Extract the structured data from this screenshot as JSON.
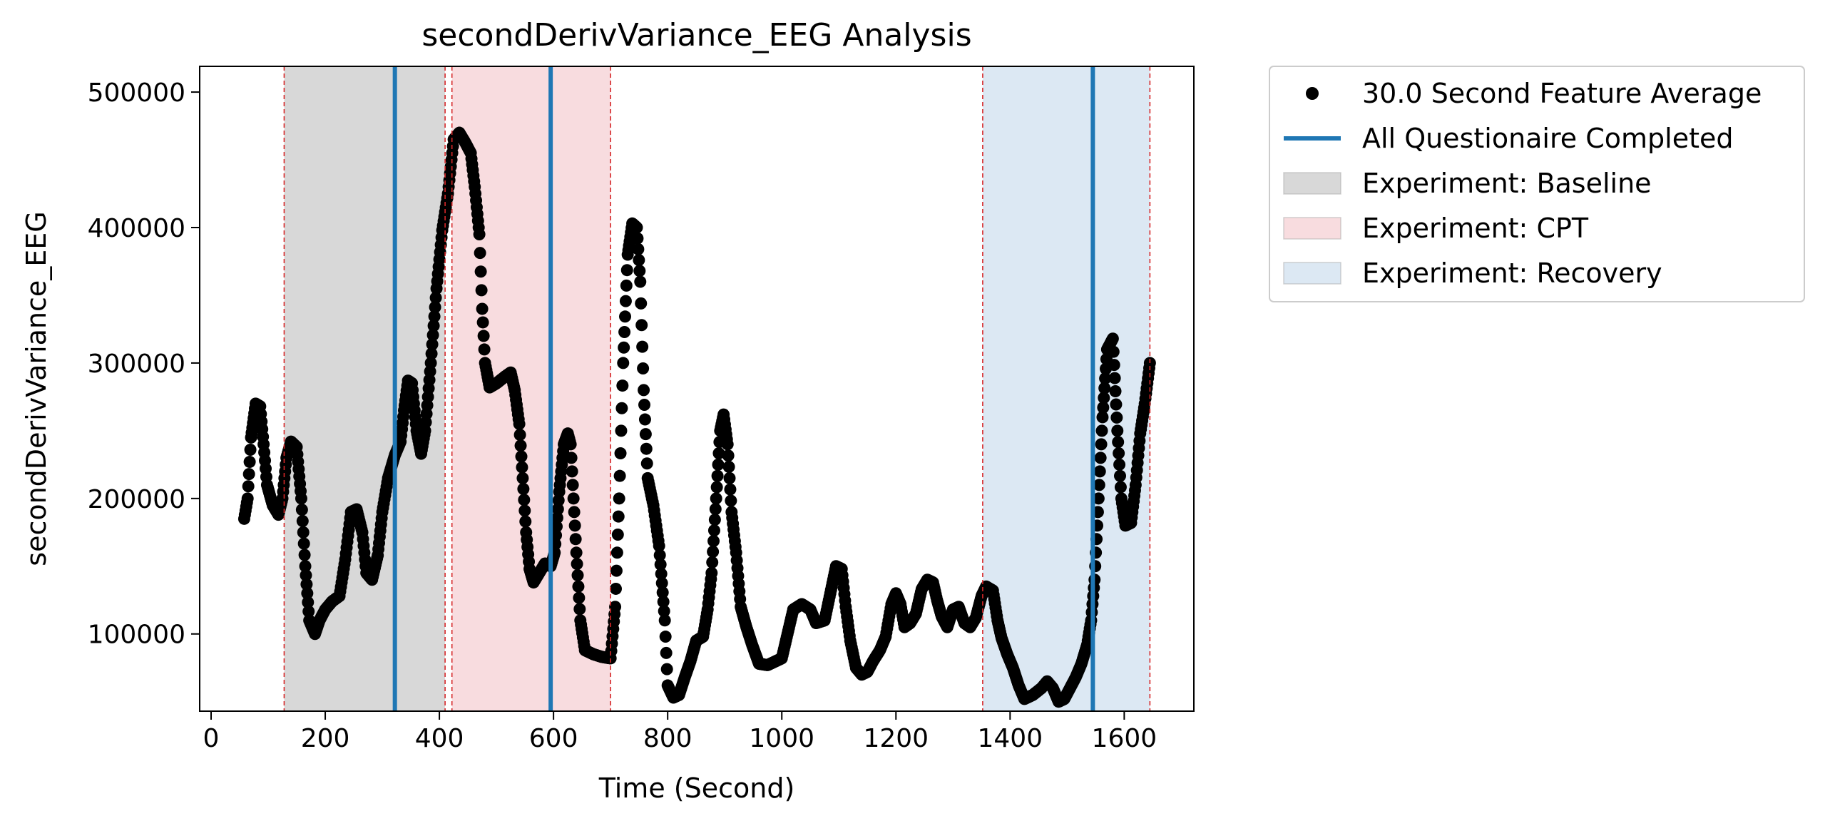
{
  "chart_data": {
    "type": "scatter",
    "title": "secondDerivVariance_EEG Analysis",
    "xlabel": "Time (Second)",
    "ylabel": "secondDerivVariance_EEG",
    "xlim": [
      -20,
      1722
    ],
    "ylim": [
      43000,
      519000
    ],
    "xticks": [
      0,
      200,
      400,
      600,
      800,
      1000,
      1200,
      1400,
      1600
    ],
    "yticks": [
      100000,
      200000,
      300000,
      400000,
      500000
    ],
    "grid": false,
    "legend_position": "outside-right-top",
    "colors": {
      "points": "#000000",
      "questionnaire_line": "#1f77b4",
      "boundary_line": "#d62728",
      "baseline": "#d8d8d8",
      "cpt": "#f8dcdf",
      "recovery": "#dce8f3"
    },
    "spans": [
      {
        "name": "Experiment: Baseline",
        "start": 128,
        "end": 410,
        "color": "#d8d8d8"
      },
      {
        "name": "Experiment: CPT",
        "start": 422,
        "end": 700,
        "color": "#f8dcdf"
      },
      {
        "name": "Experiment: Recovery",
        "start": 1352,
        "end": 1645,
        "color": "#dce8f3"
      }
    ],
    "boundaries": [
      128,
      410,
      422,
      700,
      1352,
      1645
    ],
    "questionnaire_lines": [
      322,
      595,
      1545
    ],
    "series": [
      {
        "name": "30.0 Second Feature Average",
        "marker": "circle",
        "keypoints": [
          [
            58,
            185000
          ],
          [
            64,
            200000
          ],
          [
            70,
            245000
          ],
          [
            78,
            270000
          ],
          [
            86,
            268000
          ],
          [
            92,
            240000
          ],
          [
            98,
            210000
          ],
          [
            108,
            195000
          ],
          [
            118,
            188000
          ],
          [
            125,
            200000
          ],
          [
            132,
            230000
          ],
          [
            140,
            242000
          ],
          [
            150,
            238000
          ],
          [
            158,
            200000
          ],
          [
            165,
            150000
          ],
          [
            172,
            110000
          ],
          [
            182,
            100000
          ],
          [
            190,
            110000
          ],
          [
            200,
            118000
          ],
          [
            212,
            124000
          ],
          [
            225,
            128000
          ],
          [
            235,
            155000
          ],
          [
            245,
            190000
          ],
          [
            255,
            192000
          ],
          [
            265,
            175000
          ],
          [
            272,
            145000
          ],
          [
            282,
            140000
          ],
          [
            292,
            158000
          ],
          [
            300,
            190000
          ],
          [
            310,
            215000
          ],
          [
            322,
            232000
          ],
          [
            332,
            242000
          ],
          [
            338,
            265000
          ],
          [
            345,
            287000
          ],
          [
            352,
            285000
          ],
          [
            360,
            250000
          ],
          [
            368,
            233000
          ],
          [
            375,
            250000
          ],
          [
            385,
            300000
          ],
          [
            395,
            355000
          ],
          [
            405,
            398000
          ],
          [
            415,
            425000
          ],
          [
            425,
            465000
          ],
          [
            435,
            470000
          ],
          [
            445,
            463000
          ],
          [
            455,
            455000
          ],
          [
            462,
            430000
          ],
          [
            470,
            395000
          ],
          [
            475,
            340000
          ],
          [
            480,
            300000
          ],
          [
            488,
            282000
          ],
          [
            500,
            285000
          ],
          [
            515,
            290000
          ],
          [
            525,
            293000
          ],
          [
            532,
            280000
          ],
          [
            540,
            255000
          ],
          [
            546,
            215000
          ],
          [
            552,
            175000
          ],
          [
            558,
            148000
          ],
          [
            565,
            138000
          ],
          [
            575,
            145000
          ],
          [
            585,
            152000
          ],
          [
            595,
            150000
          ],
          [
            602,
            160000
          ],
          [
            610,
            205000
          ],
          [
            618,
            240000
          ],
          [
            625,
            248000
          ],
          [
            630,
            240000
          ],
          [
            635,
            200000
          ],
          [
            640,
            160000
          ],
          [
            647,
            110000
          ],
          [
            655,
            88000
          ],
          [
            670,
            85000
          ],
          [
            685,
            83000
          ],
          [
            700,
            82000
          ],
          [
            708,
            120000
          ],
          [
            715,
            200000
          ],
          [
            722,
            300000
          ],
          [
            730,
            380000
          ],
          [
            738,
            403000
          ],
          [
            746,
            400000
          ],
          [
            752,
            360000
          ],
          [
            758,
            280000
          ],
          [
            765,
            215000
          ],
          [
            775,
            195000
          ],
          [
            785,
            165000
          ],
          [
            795,
            110000
          ],
          [
            800,
            62000
          ],
          [
            810,
            53000
          ],
          [
            820,
            55000
          ],
          [
            830,
            68000
          ],
          [
            840,
            80000
          ],
          [
            850,
            95000
          ],
          [
            862,
            98000
          ],
          [
            870,
            118000
          ],
          [
            877,
            145000
          ],
          [
            885,
            200000
          ],
          [
            892,
            250000
          ],
          [
            898,
            262000
          ],
          [
            905,
            240000
          ],
          [
            912,
            190000
          ],
          [
            920,
            160000
          ],
          [
            928,
            120000
          ],
          [
            938,
            105000
          ],
          [
            948,
            92000
          ],
          [
            960,
            78000
          ],
          [
            975,
            77000
          ],
          [
            990,
            80000
          ],
          [
            1000,
            82000
          ],
          [
            1010,
            100000
          ],
          [
            1020,
            118000
          ],
          [
            1035,
            122000
          ],
          [
            1050,
            118000
          ],
          [
            1060,
            108000
          ],
          [
            1075,
            110000
          ],
          [
            1085,
            130000
          ],
          [
            1095,
            150000
          ],
          [
            1105,
            148000
          ],
          [
            1112,
            120000
          ],
          [
            1120,
            95000
          ],
          [
            1130,
            75000
          ],
          [
            1140,
            70000
          ],
          [
            1150,
            72000
          ],
          [
            1160,
            80000
          ],
          [
            1172,
            88000
          ],
          [
            1182,
            98000
          ],
          [
            1192,
            122000
          ],
          [
            1200,
            130000
          ],
          [
            1208,
            122000
          ],
          [
            1215,
            105000
          ],
          [
            1225,
            108000
          ],
          [
            1235,
            115000
          ],
          [
            1245,
            133000
          ],
          [
            1255,
            140000
          ],
          [
            1265,
            138000
          ],
          [
            1272,
            125000
          ],
          [
            1280,
            113000
          ],
          [
            1290,
            105000
          ],
          [
            1300,
            118000
          ],
          [
            1310,
            120000
          ],
          [
            1320,
            108000
          ],
          [
            1330,
            105000
          ],
          [
            1340,
            112000
          ],
          [
            1350,
            128000
          ],
          [
            1358,
            135000
          ],
          [
            1370,
            132000
          ],
          [
            1378,
            110000
          ],
          [
            1385,
            97000
          ],
          [
            1395,
            85000
          ],
          [
            1405,
            75000
          ],
          [
            1415,
            62000
          ],
          [
            1425,
            52000
          ],
          [
            1440,
            55000
          ],
          [
            1455,
            60000
          ],
          [
            1465,
            65000
          ],
          [
            1475,
            60000
          ],
          [
            1485,
            50000
          ],
          [
            1495,
            52000
          ],
          [
            1505,
            60000
          ],
          [
            1515,
            68000
          ],
          [
            1525,
            78000
          ],
          [
            1535,
            92000
          ],
          [
            1542,
            110000
          ],
          [
            1548,
            140000
          ],
          [
            1555,
            200000
          ],
          [
            1562,
            260000
          ],
          [
            1570,
            310000
          ],
          [
            1580,
            318000
          ],
          [
            1588,
            250000
          ],
          [
            1595,
            200000
          ],
          [
            1602,
            180000
          ],
          [
            1612,
            182000
          ],
          [
            1620,
            210000
          ],
          [
            1628,
            248000
          ],
          [
            1636,
            270000
          ],
          [
            1645,
            300000
          ]
        ]
      }
    ],
    "legend": {
      "items": [
        {
          "label": "30.0 Second Feature Average",
          "kind": "marker"
        },
        {
          "label": "All Questionaire Completed",
          "kind": "line"
        },
        {
          "label": "Experiment: Baseline",
          "kind": "patch",
          "color": "#d8d8d8"
        },
        {
          "label": "Experiment: CPT",
          "kind": "patch",
          "color": "#f8dcdf"
        },
        {
          "label": "Experiment: Recovery",
          "kind": "patch",
          "color": "#dce8f3"
        }
      ]
    }
  }
}
